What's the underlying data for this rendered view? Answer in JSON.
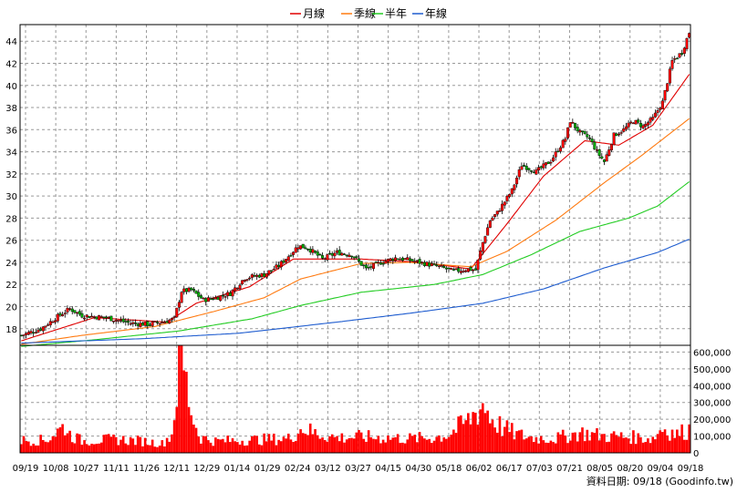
{
  "chart_data": {
    "type": "candlestick",
    "legend": [
      {
        "name": "月線",
        "color": "#e00000"
      },
      {
        "name": "季線",
        "color": "#ff7a10"
      },
      {
        "name": "半年",
        "color": "#22cc22"
      },
      {
        "name": "年線",
        "color": "#1e5ccf"
      }
    ],
    "price_axis": {
      "ylim": [
        16.5,
        45.5
      ],
      "ticks": [
        18,
        20,
        22,
        24,
        26,
        28,
        30,
        32,
        34,
        36,
        38,
        40,
        42,
        44
      ]
    },
    "volume_axis": {
      "ylim": [
        0,
        640000
      ],
      "ticks": [
        0,
        100000,
        200000,
        300000,
        400000,
        500000,
        600000
      ],
      "tick_labels": [
        "0",
        "100,000",
        "200,000",
        "300,000",
        "400,000",
        "500,000",
        "600,000"
      ]
    },
    "x_ticks": [
      "09/19",
      "10/08",
      "10/27",
      "11/11",
      "11/26",
      "12/11",
      "12/29",
      "01/14",
      "01/29",
      "02/24",
      "03/12",
      "03/27",
      "04/15",
      "04/30",
      "05/18",
      "06/02",
      "06/17",
      "07/03",
      "07/21",
      "08/05",
      "08/20",
      "09/04",
      "09/18"
    ],
    "close_anchors": [
      [
        0,
        17.4
      ],
      [
        8,
        18.0
      ],
      [
        15,
        19.1
      ],
      [
        20,
        19.8
      ],
      [
        25,
        19.2
      ],
      [
        35,
        19.0
      ],
      [
        45,
        18.5
      ],
      [
        52,
        18.4
      ],
      [
        58,
        18.6
      ],
      [
        63,
        18.9
      ],
      [
        66,
        21.4
      ],
      [
        70,
        21.5
      ],
      [
        75,
        20.6
      ],
      [
        80,
        20.8
      ],
      [
        86,
        21.2
      ],
      [
        92,
        22.6
      ],
      [
        100,
        22.9
      ],
      [
        106,
        23.7
      ],
      [
        111,
        24.8
      ],
      [
        114,
        25.5
      ],
      [
        118,
        25.3
      ],
      [
        124,
        24.3
      ],
      [
        130,
        24.9
      ],
      [
        136,
        24.7
      ],
      [
        142,
        23.4
      ],
      [
        148,
        24.0
      ],
      [
        154,
        24.4
      ],
      [
        160,
        24.2
      ],
      [
        166,
        23.9
      ],
      [
        172,
        23.6
      ],
      [
        178,
        23.2
      ],
      [
        184,
        23.4
      ],
      [
        187,
        23.3
      ],
      [
        190,
        25.8
      ],
      [
        193,
        27.8
      ],
      [
        196,
        28.5
      ],
      [
        202,
        30.5
      ],
      [
        206,
        32.8
      ],
      [
        212,
        32.2
      ],
      [
        218,
        33.2
      ],
      [
        224,
        35.2
      ],
      [
        226,
        36.8
      ],
      [
        230,
        35.7
      ],
      [
        234,
        35.2
      ],
      [
        237,
        34.0
      ],
      [
        240,
        33.1
      ],
      [
        244,
        35.5
      ],
      [
        248,
        36.0
      ],
      [
        252,
        36.8
      ],
      [
        256,
        36.3
      ],
      [
        260,
        37.0
      ],
      [
        264,
        38.5
      ],
      [
        268,
        42.2
      ],
      [
        272,
        43.0
      ],
      [
        275,
        44.8
      ]
    ],
    "volume_anchors": [
      [
        0,
        75000
      ],
      [
        10,
        75000
      ],
      [
        18,
        160000
      ],
      [
        20,
        110000
      ],
      [
        25,
        70000
      ],
      [
        30,
        75000
      ],
      [
        40,
        80000
      ],
      [
        50,
        70000
      ],
      [
        58,
        55000
      ],
      [
        62,
        110000
      ],
      [
        64,
        380000
      ],
      [
        66,
        630000
      ],
      [
        68,
        400000
      ],
      [
        70,
        260000
      ],
      [
        72,
        150000
      ],
      [
        74,
        90000
      ],
      [
        80,
        70000
      ],
      [
        90,
        75000
      ],
      [
        100,
        80000
      ],
      [
        110,
        85000
      ],
      [
        116,
        150000
      ],
      [
        120,
        120000
      ],
      [
        130,
        90000
      ],
      [
        140,
        95000
      ],
      [
        150,
        90000
      ],
      [
        160,
        85000
      ],
      [
        170,
        90000
      ],
      [
        176,
        110000
      ],
      [
        180,
        150000
      ],
      [
        184,
        190000
      ],
      [
        187,
        240000
      ],
      [
        190,
        290000
      ],
      [
        194,
        200000
      ],
      [
        198,
        150000
      ],
      [
        204,
        110000
      ],
      [
        210,
        90000
      ],
      [
        220,
        85000
      ],
      [
        230,
        120000
      ],
      [
        240,
        100000
      ],
      [
        250,
        95000
      ],
      [
        260,
        85000
      ],
      [
        264,
        150000
      ],
      [
        270,
        110000
      ],
      [
        275,
        140000
      ]
    ],
    "ma_month": [
      [
        0,
        16.9
      ],
      [
        30,
        19.0
      ],
      [
        60,
        18.6
      ],
      [
        72,
        20.3
      ],
      [
        94,
        21.8
      ],
      [
        112,
        24.3
      ],
      [
        140,
        24.3
      ],
      [
        165,
        24.0
      ],
      [
        185,
        23.4
      ],
      [
        200,
        27.5
      ],
      [
        215,
        31.8
      ],
      [
        232,
        35.0
      ],
      [
        246,
        34.6
      ],
      [
        260,
        36.4
      ],
      [
        275,
        41.0
      ]
    ],
    "ma_quarter": [
      [
        0,
        16.6
      ],
      [
        25,
        17.4
      ],
      [
        55,
        18.2
      ],
      [
        80,
        19.6
      ],
      [
        100,
        20.8
      ],
      [
        115,
        22.5
      ],
      [
        140,
        23.9
      ],
      [
        160,
        24.0
      ],
      [
        185,
        23.6
      ],
      [
        200,
        25.0
      ],
      [
        220,
        27.8
      ],
      [
        240,
        31.2
      ],
      [
        255,
        33.6
      ],
      [
        275,
        37.0
      ]
    ],
    "ma_half": [
      [
        0,
        16.4
      ],
      [
        30,
        17.0
      ],
      [
        65,
        17.8
      ],
      [
        95,
        18.9
      ],
      [
        115,
        20.1
      ],
      [
        140,
        21.3
      ],
      [
        170,
        22.0
      ],
      [
        190,
        22.9
      ],
      [
        210,
        24.7
      ],
      [
        230,
        26.8
      ],
      [
        250,
        28.0
      ],
      [
        262,
        29.1
      ],
      [
        275,
        31.3
      ]
    ],
    "ma_year": [
      [
        0,
        16.7
      ],
      [
        50,
        17.1
      ],
      [
        90,
        17.6
      ],
      [
        130,
        18.6
      ],
      [
        160,
        19.4
      ],
      [
        190,
        20.3
      ],
      [
        215,
        21.6
      ],
      [
        240,
        23.5
      ],
      [
        262,
        24.9
      ],
      [
        275,
        26.1
      ]
    ],
    "footer": "資料日期: 09/18  (Goodinfo.tw)"
  }
}
